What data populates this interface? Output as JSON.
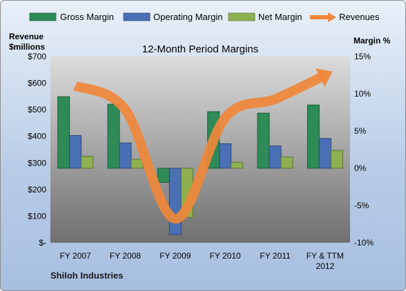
{
  "chart_data": {
    "type": "bar",
    "title": "12-Month Period Margins",
    "company": "Shiloh Industries",
    "left_axis": {
      "label_line1": "Revenue",
      "label_line2": "$millions",
      "range": [
        0,
        700
      ],
      "ticks": [
        "$-",
        "$100",
        "$200",
        "$300",
        "$400",
        "$500",
        "$600",
        "$700"
      ]
    },
    "right_axis": {
      "label": "Margin %",
      "range": [
        -10,
        15
      ],
      "ticks": [
        "-10%",
        "-5%",
        "0%",
        "5%",
        "10%",
        "15%"
      ]
    },
    "categories": [
      "FY 2007",
      "FY 2008",
      "FY 2009",
      "FY 2010",
      "FY 2011",
      "FY & TTM 2012"
    ],
    "series": [
      {
        "name": "Gross Margin",
        "axis": "right",
        "color": "#2e8b57",
        "values": [
          9.6,
          8.6,
          -1.9,
          7.6,
          7.4,
          8.5
        ]
      },
      {
        "name": "Operating Margin",
        "axis": "right",
        "color": "#4a6fb5",
        "values": [
          4.4,
          3.4,
          -8.9,
          3.3,
          3.0,
          4.0
        ]
      },
      {
        "name": "Net Margin",
        "axis": "right",
        "color": "#8fb050",
        "values": [
          1.6,
          1.2,
          -6.6,
          0.8,
          1.5,
          2.4
        ]
      },
      {
        "name": "Revenues",
        "axis": "left",
        "color": "#f0873a",
        "values": [
          590,
          500,
          90,
          470,
          540,
          630
        ]
      }
    ],
    "legend_position": "top",
    "grid": false
  }
}
